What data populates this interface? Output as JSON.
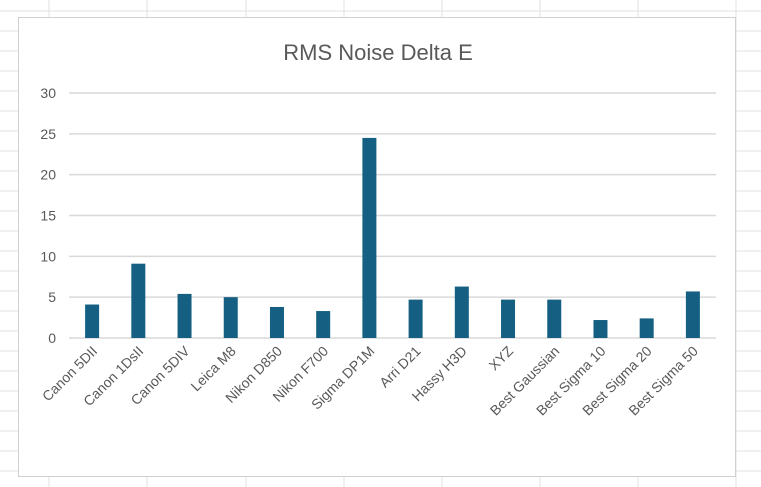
{
  "chart_data": {
    "type": "bar",
    "title": "RMS Noise Delta E",
    "xlabel": "",
    "ylabel": "",
    "categories": [
      "Canon 5DII",
      "Canon 1DsII",
      "Canon 5DIV",
      "Leica M8",
      "Nikon D850",
      "Nikon F700",
      "Sigma DP1M",
      "Arri D21",
      "Hassy H3D",
      "XYZ",
      "Best Gaussian",
      "Best Sigma 10",
      "Best Sigma 20",
      "Best Sigma 50"
    ],
    "values": [
      4.1,
      9.1,
      5.4,
      5.0,
      3.8,
      3.3,
      24.5,
      4.7,
      6.3,
      4.7,
      4.7,
      2.2,
      2.4,
      5.7
    ],
    "ylim": [
      0,
      30
    ],
    "yticks": [
      0,
      5,
      10,
      15,
      20,
      25,
      30
    ],
    "grid": true,
    "legend": "none",
    "bar_color": "#155f82",
    "gridline_color": "#d9d9d9"
  }
}
